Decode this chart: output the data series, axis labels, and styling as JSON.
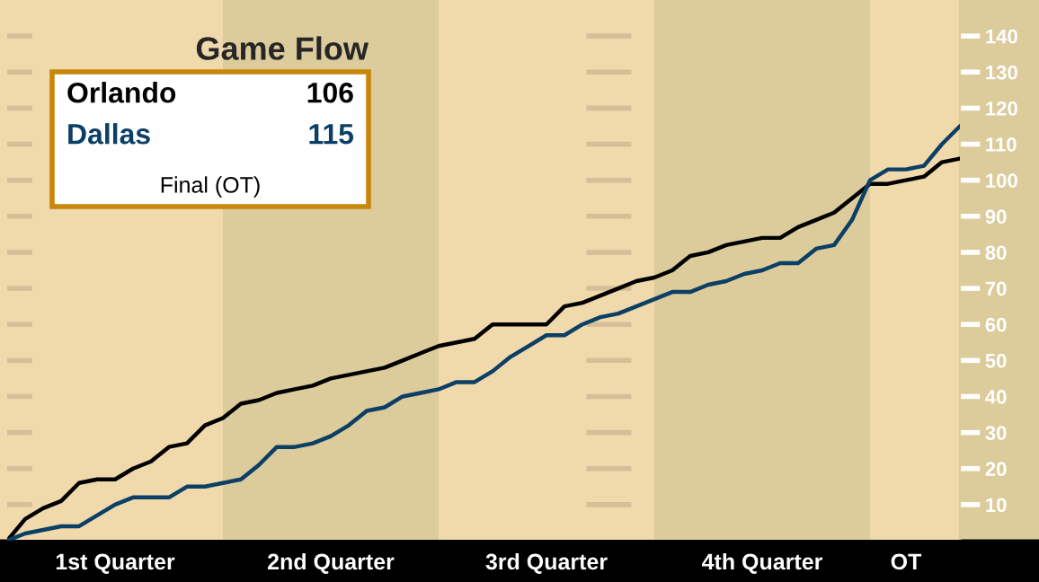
{
  "chart_data": {
    "type": "line",
    "title": "Game Flow",
    "categories": [
      null,
      null,
      null,
      null,
      null,
      null,
      "1st Quarter",
      null,
      null,
      null,
      null,
      null,
      null,
      null,
      null,
      null,
      null,
      null,
      "2nd Quarter",
      null,
      null,
      null,
      null,
      null,
      null,
      null,
      null,
      null,
      null,
      null,
      "3rd Quarter",
      null,
      null,
      null,
      null,
      null,
      null,
      null,
      null,
      null,
      null,
      null,
      "4th Quarter",
      null,
      null,
      null,
      null,
      null,
      null,
      null,
      "OT",
      null,
      null,
      null
    ],
    "ylim": [
      0,
      150
    ],
    "yticks": [
      10,
      20,
      30,
      40,
      50,
      60,
      70,
      80,
      90,
      100,
      110,
      120,
      130,
      140
    ],
    "grid": "y",
    "legend": "top left",
    "line_style": "solid",
    "marker": "none",
    "annotations": [
      "106",
      "115",
      "Final (OT)"
    ],
    "series": [
      {
        "name": "Orlando",
        "color": "#000000",
        "values": [
          0,
          6,
          9,
          11,
          16,
          17,
          17,
          20,
          22,
          26,
          27,
          32,
          34,
          38,
          39,
          41,
          42,
          43,
          45,
          46,
          47,
          48,
          50,
          52,
          54,
          55,
          56,
          60,
          60,
          60,
          60,
          65,
          66,
          68,
          70,
          72,
          73,
          75,
          79,
          80,
          82,
          83,
          84,
          84,
          87,
          89,
          91,
          95,
          99,
          99,
          100,
          101,
          105,
          106
        ]
      },
      {
        "name": "Dallas",
        "color": "#0b3f66",
        "values": [
          0,
          2,
          3,
          4,
          4,
          7,
          10,
          12,
          12,
          12,
          15,
          15,
          16,
          17,
          21,
          26,
          26,
          27,
          29,
          32,
          36,
          37,
          40,
          41,
          42,
          44,
          44,
          47,
          51,
          54,
          57,
          57,
          60,
          62,
          63,
          65,
          67,
          69,
          69,
          71,
          72,
          74,
          75,
          77,
          77,
          81,
          82,
          89,
          100,
          103,
          103,
          104,
          110,
          115
        ]
      }
    ]
  }
}
